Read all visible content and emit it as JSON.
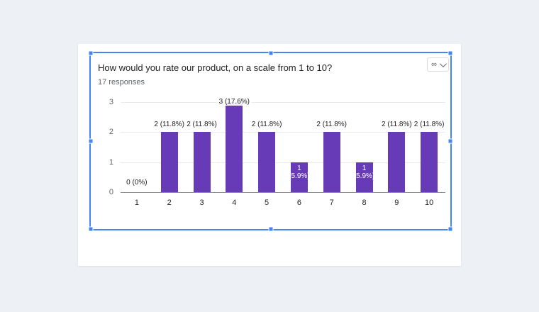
{
  "theme": {
    "background": "#edf0f4",
    "card": "#ffffff",
    "bar": "#673ab7",
    "selection": "#4285f4",
    "text": "#202124",
    "muted": "#5f6368",
    "grid": "#e8eaed",
    "baseline": "#8a8f94",
    "border": "#dadce0"
  },
  "chart": {
    "title": "How would you rate our product, on a scale from 1 to 10?",
    "subtitle": "17 responses"
  },
  "toolbar": {
    "linked_chart_icon": "∞"
  },
  "chart_data": {
    "type": "bar",
    "title": "How would you rate our product, on a scale from 1 to 10?",
    "subtitle": "17 responses",
    "total_responses": 17,
    "categories": [
      "1",
      "2",
      "3",
      "4",
      "5",
      "6",
      "7",
      "8",
      "9",
      "10"
    ],
    "values": [
      0,
      2,
      2,
      3,
      2,
      1,
      2,
      1,
      2,
      2
    ],
    "labels": [
      "0 (0%)",
      "2 (11.8%)",
      "2 (11.8%)",
      "3 (17.6%)",
      "2 (11.8%)",
      "1 (5.9%)",
      "2 (11.8%)",
      "1 (5.9%)",
      "2 (11.8%)",
      "2 (11.8%)"
    ],
    "bar_color": "#673ab7",
    "xlabel": "",
    "ylabel": "",
    "ylim": [
      0,
      3
    ],
    "yticks": [
      0,
      1,
      2,
      3
    ],
    "grid": true,
    "legend": "none"
  }
}
